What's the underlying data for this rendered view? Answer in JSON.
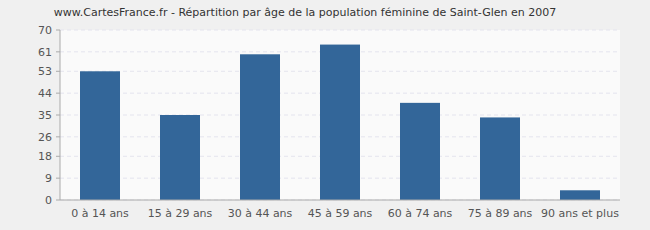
{
  "chart_data": {
    "type": "bar",
    "title": "www.CartesFrance.fr - Répartition par âge de la population féminine de Saint-Glen en 2007",
    "categories": [
      "0 à 14 ans",
      "15 à 29 ans",
      "30 à 44 ans",
      "45 à 59 ans",
      "60 à 74 ans",
      "75 à 89 ans",
      "90 ans et plus"
    ],
    "values": [
      53,
      35,
      60,
      64,
      40,
      34,
      4
    ],
    "color": "#336699",
    "ylim": [
      0,
      70
    ],
    "yticks": [
      0,
      9,
      18,
      26,
      35,
      44,
      53,
      61,
      70
    ],
    "grid": true
  }
}
